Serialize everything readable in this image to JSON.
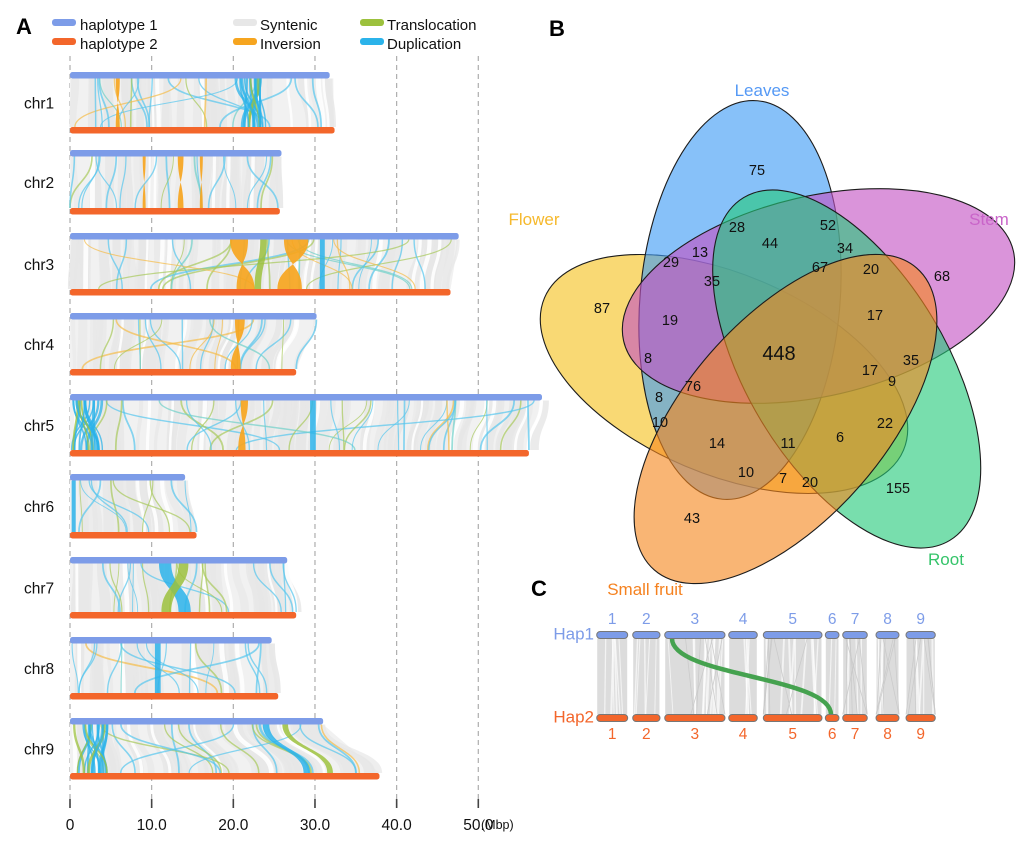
{
  "panel_a": {
    "label": "A",
    "legend": [
      {
        "label": "haplotype 1",
        "color": "#7D9CE8"
      },
      {
        "label": "haplotype 2",
        "color": "#F3662B"
      },
      {
        "label": "Syntenic",
        "color": "#E7E7E7"
      },
      {
        "label": "Inversion",
        "color": "#F6A51F"
      },
      {
        "label": "Translocation",
        "color": "#9CC13D"
      },
      {
        "label": "Duplication",
        "color": "#2BB3EA"
      }
    ],
    "x_axis": {
      "tick_labels": [
        "0",
        "10.0",
        "20.0",
        "30.0",
        "40.0",
        "50.0"
      ],
      "tick_values_mbp": [
        0,
        10,
        20,
        30,
        40,
        50
      ],
      "unit_label": "(Mbp)"
    },
    "chromosomes": [
      {
        "name": "chr1",
        "hap1_mbp": 31.8,
        "hap2_mbp": 32.4,
        "features": [
          {
            "type": "inversion",
            "hap1_mbp": 5.6,
            "hap2_mbp": 5.6,
            "width_mbp": 0.5
          },
          {
            "type": "duplication_cluster",
            "hap1_mbp": 20.3,
            "hap2_mbp": 20.8,
            "width_mbp": 3.2
          }
        ]
      },
      {
        "name": "chr2",
        "hap1_mbp": 25.9,
        "hap2_mbp": 25.7,
        "features": [
          {
            "type": "inversion",
            "hap1_mbp": 8.9,
            "hap2_mbp": 8.9,
            "width_mbp": 0.3
          },
          {
            "type": "inversion",
            "hap1_mbp": 13.2,
            "hap2_mbp": 13.2,
            "width_mbp": 0.7
          },
          {
            "type": "inversion",
            "hap1_mbp": 15.9,
            "hap2_mbp": 15.9,
            "width_mbp": 0.3
          }
        ]
      },
      {
        "name": "chr3",
        "hap1_mbp": 47.6,
        "hap2_mbp": 46.6,
        "features": [
          {
            "type": "inversion",
            "hap1_mbp": 19.6,
            "hap2_mbp": 20.4,
            "width_mbp": 2.2
          },
          {
            "type": "translocation",
            "hap1_mbp": 23.3,
            "hap2_mbp": 22.6,
            "width_mbp": 0.8
          },
          {
            "type": "inversion",
            "hap1_mbp": 26.2,
            "hap2_mbp": 25.4,
            "width_mbp": 3.0
          },
          {
            "type": "duplication",
            "hap1_mbp": 30.6,
            "hap2_mbp": 30.6,
            "width_mbp": 0.6
          }
        ]
      },
      {
        "name": "chr4",
        "hap1_mbp": 30.2,
        "hap2_mbp": 27.7,
        "features": [
          {
            "type": "inversion",
            "hap1_mbp": 20.2,
            "hap2_mbp": 19.7,
            "width_mbp": 1.2
          }
        ]
      },
      {
        "name": "chr5",
        "hap1_mbp": 57.8,
        "hap2_mbp": 56.2,
        "features": [
          {
            "type": "duplication_cluster",
            "hap1_mbp": 0.2,
            "hap2_mbp": 0.2,
            "width_mbp": 4.3
          },
          {
            "type": "inversion",
            "hap1_mbp": 20.9,
            "hap2_mbp": 20.6,
            "width_mbp": 0.9
          },
          {
            "type": "duplication",
            "hap1_mbp": 29.4,
            "hap2_mbp": 29.4,
            "width_mbp": 0.7
          }
        ]
      },
      {
        "name": "chr6",
        "hap1_mbp": 14.1,
        "hap2_mbp": 15.5,
        "features": [
          {
            "type": "duplication",
            "hap1_mbp": 0.2,
            "hap2_mbp": 0.2,
            "width_mbp": 0.5
          }
        ]
      },
      {
        "name": "chr7",
        "hap1_mbp": 26.6,
        "hap2_mbp": 27.7,
        "features": [
          {
            "type": "duplication",
            "hap1_mbp": 10.9,
            "hap2_mbp": 13.3,
            "width_mbp": 1.5
          },
          {
            "type": "translocation",
            "hap1_mbp": 13.3,
            "hap2_mbp": 11.2,
            "width_mbp": 1.2
          }
        ]
      },
      {
        "name": "chr8",
        "hap1_mbp": 24.7,
        "hap2_mbp": 25.5,
        "features": [
          {
            "type": "duplication",
            "hap1_mbp": 10.4,
            "hap2_mbp": 10.4,
            "width_mbp": 0.7
          }
        ]
      },
      {
        "name": "chr9",
        "hap1_mbp": 31.0,
        "hap2_mbp": 37.9,
        "features": [
          {
            "type": "duplication_cluster",
            "hap1_mbp": 0.3,
            "hap2_mbp": 0.3,
            "width_mbp": 4.6
          },
          {
            "type": "duplication",
            "hap1_mbp": 23.6,
            "hap2_mbp": 28.6,
            "width_mbp": 0.8
          },
          {
            "type": "translocation",
            "hap1_mbp": 26.0,
            "hap2_mbp": 31.5,
            "width_mbp": 0.7
          }
        ]
      }
    ]
  },
  "panel_b": {
    "label": "B",
    "venn": {
      "sets": [
        {
          "name": "Flower",
          "label_color": "#F6B92D",
          "fill_color": "#F6C21F"
        },
        {
          "name": "Leaves",
          "label_color": "#5599F5",
          "fill_color": "#3D9BF5"
        },
        {
          "name": "Stem",
          "label_color": "#C964C9",
          "fill_color": "#C353C3"
        },
        {
          "name": "Root",
          "label_color": "#35C46A",
          "fill_color": "#25C97B"
        },
        {
          "name": "Small fruit",
          "label_color": "#F58220",
          "fill_color": "#F6871F"
        }
      ],
      "region_values_reading_order": [
        75,
        28,
        52,
        44,
        34,
        13,
        29,
        67,
        20,
        68,
        35,
        87,
        17,
        19,
        448,
        8,
        35,
        17,
        9,
        76,
        8,
        22,
        10,
        14,
        11,
        6,
        10,
        7,
        20,
        155,
        43
      ],
      "unique_counts": {
        "Flower": 87,
        "Leaves": 75,
        "Stem": 68,
        "Root": 155,
        "Small fruit": 43
      },
      "all_five_intersection": 448
    }
  },
  "panel_c": {
    "label": "C",
    "hap1": {
      "label": "Hap1",
      "color": "#7D9CE8",
      "chromosome_numbers": [
        "1",
        "2",
        "3",
        "4",
        "5",
        "6",
        "7",
        "8",
        "9"
      ]
    },
    "hap2": {
      "label": "Hap2",
      "color": "#F3662B",
      "chromosome_numbers": [
        "1",
        "2",
        "3",
        "4",
        "5",
        "6",
        "7",
        "8",
        "9"
      ]
    },
    "translocation": {
      "from": "Hap1 chr3",
      "to": "Hap2 chr6",
      "color": "#3C9E47"
    }
  },
  "chart_data": [
    {
      "type": "synteny_bar",
      "title": "A",
      "categories": [
        "chr1",
        "chr2",
        "chr3",
        "chr4",
        "chr5",
        "chr6",
        "chr7",
        "chr8",
        "chr9"
      ],
      "series": [
        {
          "name": "haplotype 1 length (Mbp)",
          "values": [
            31.8,
            25.9,
            47.6,
            30.2,
            57.8,
            14.1,
            26.6,
            24.7,
            31.0
          ]
        },
        {
          "name": "haplotype 2 length (Mbp)",
          "values": [
            32.4,
            25.7,
            46.6,
            27.7,
            56.2,
            15.5,
            27.7,
            25.5,
            37.9
          ]
        }
      ],
      "xlabel": "(Mbp)",
      "xlim": [
        0,
        52
      ],
      "x_ticks": [
        0,
        10,
        20,
        30,
        40,
        50
      ],
      "legend_position": "top",
      "legend_entries": [
        "haplotype 1",
        "haplotype 2",
        "Syntenic",
        "Inversion",
        "Translocation",
        "Duplication"
      ]
    },
    {
      "type": "venn",
      "title": "B",
      "sets": [
        "Flower",
        "Leaves",
        "Stem",
        "Root",
        "Small fruit"
      ],
      "region_values_reading_order": [
        75,
        28,
        52,
        44,
        34,
        13,
        29,
        67,
        20,
        68,
        35,
        87,
        17,
        19,
        448,
        8,
        35,
        17,
        9,
        76,
        8,
        22,
        10,
        14,
        11,
        6,
        10,
        7,
        20,
        155,
        43
      ],
      "unique_counts": {
        "Flower": 87,
        "Leaves": 75,
        "Stem": 68,
        "Root": 155,
        "Small fruit": 43
      },
      "all_five_intersection": 448
    },
    {
      "type": "synteny_map",
      "title": "C",
      "rows": [
        "Hap1",
        "Hap2"
      ],
      "chromosomes": [
        "1",
        "2",
        "3",
        "4",
        "5",
        "6",
        "7",
        "8",
        "9"
      ],
      "translocations": [
        {
          "from": "Hap1 chr3",
          "to": "Hap2 chr6"
        }
      ]
    }
  ]
}
